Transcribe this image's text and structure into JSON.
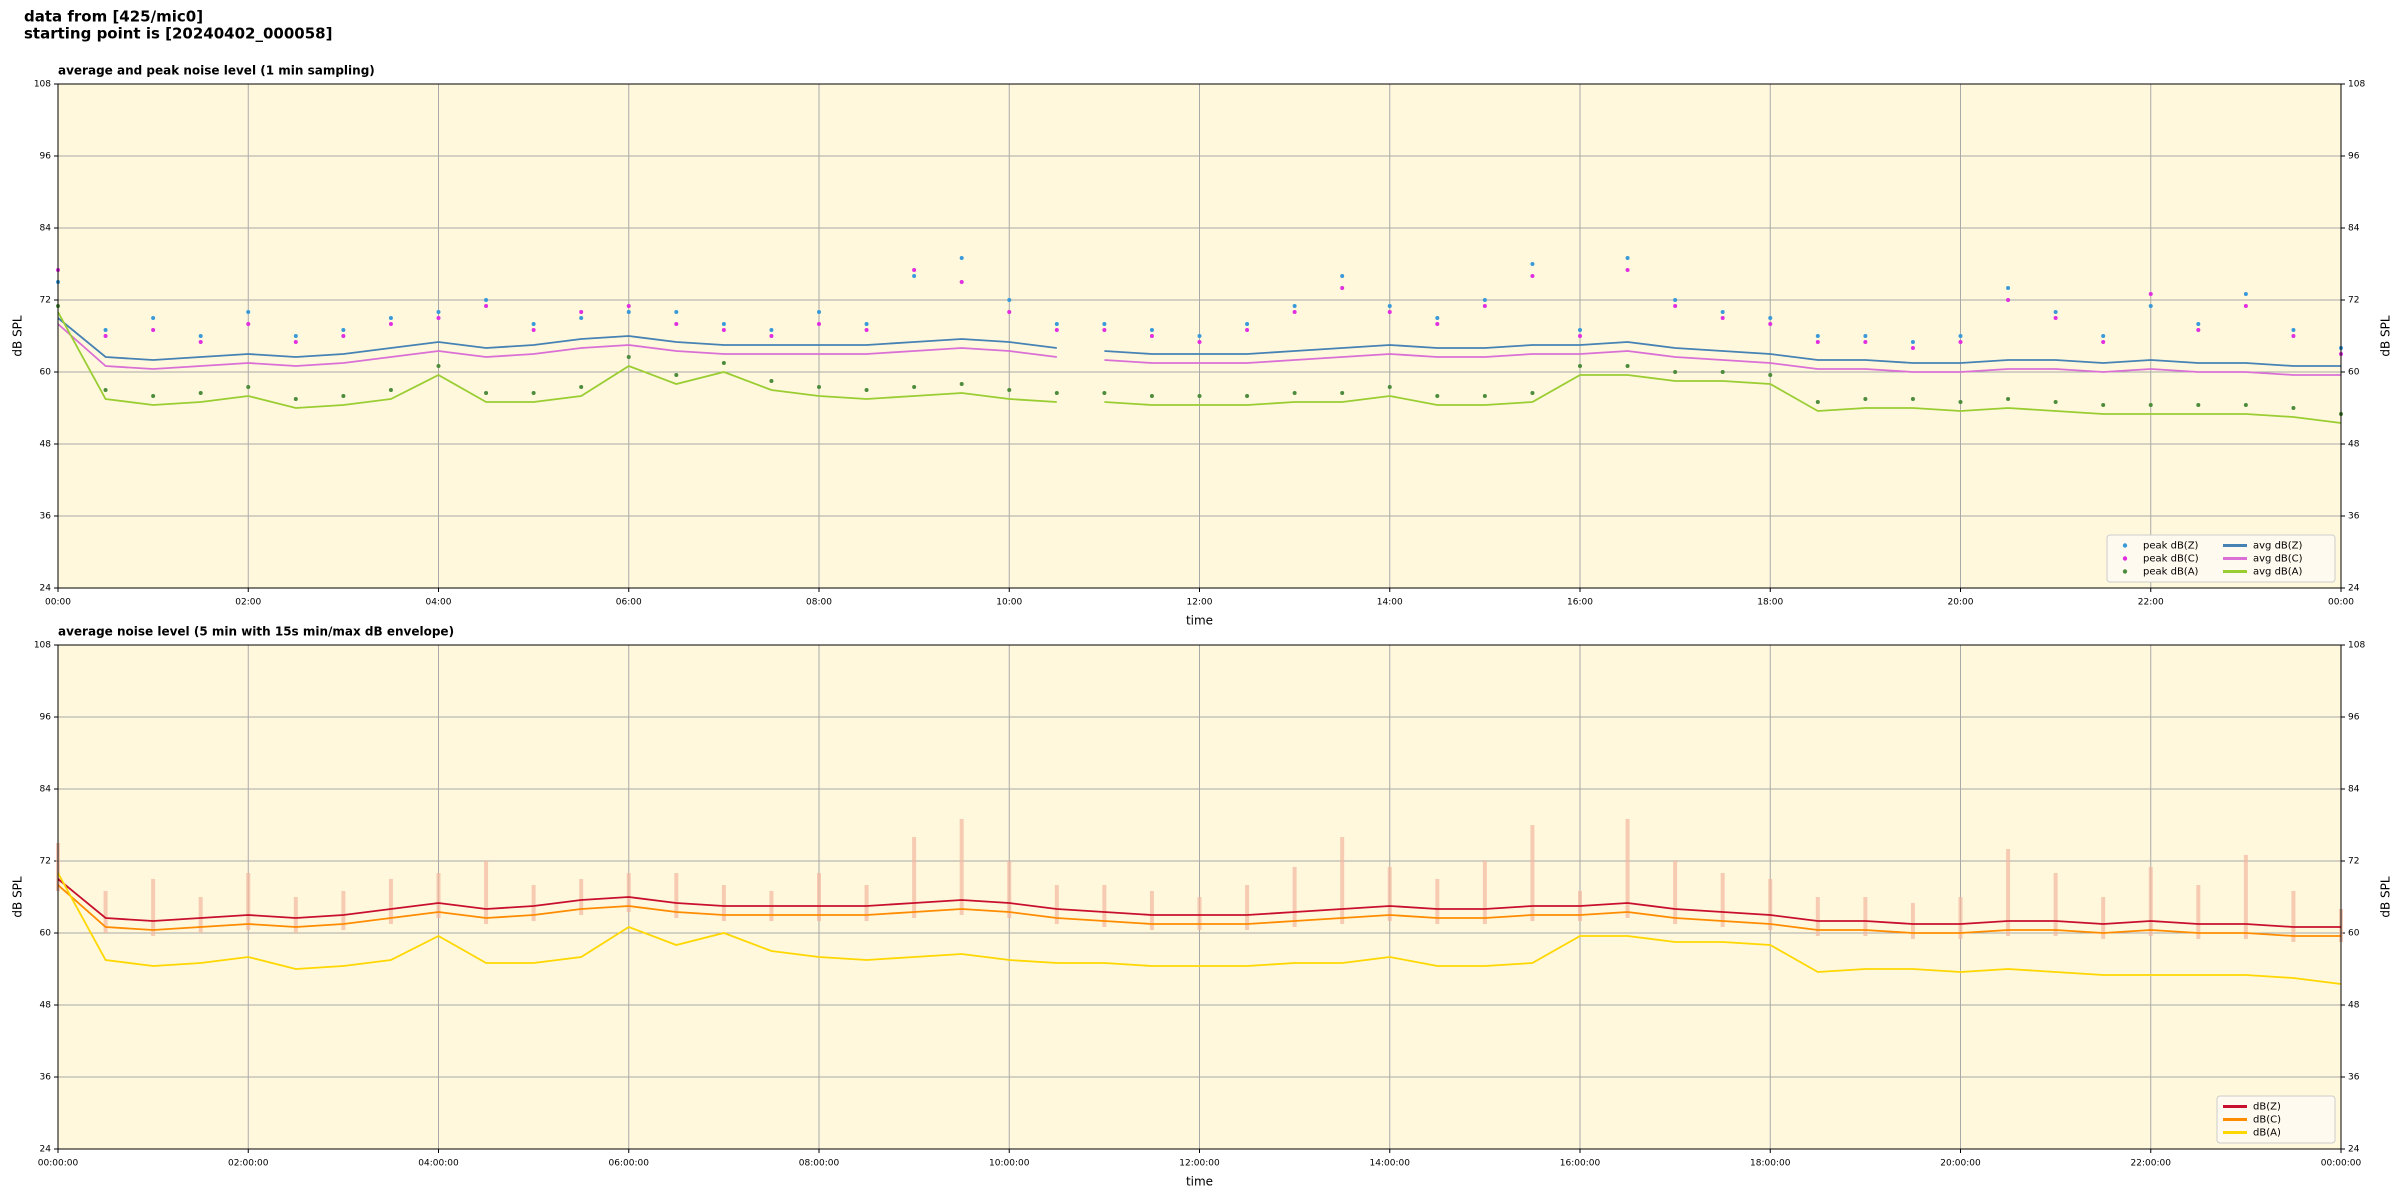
{
  "header": {
    "lines": [
      "data from [425/mic0]",
      "starting point is [20240402_000058]"
    ]
  },
  "chart_data": [
    {
      "type": "line",
      "title": "average and peak noise level (1 min sampling)",
      "xlabel": "time",
      "ylabel": "dB SPL",
      "y2label": "dB SPL",
      "xlim": [
        0,
        24
      ],
      "xticks": [
        {
          "value": 0,
          "label": "00:00"
        },
        {
          "value": 2,
          "label": "02:00"
        },
        {
          "value": 4,
          "label": "04:00"
        },
        {
          "value": 6,
          "label": "06:00"
        },
        {
          "value": 8,
          "label": "08:00"
        },
        {
          "value": 10,
          "label": "10:00"
        },
        {
          "value": 12,
          "label": "12:00"
        },
        {
          "value": 14,
          "label": "14:00"
        },
        {
          "value": 16,
          "label": "16:00"
        },
        {
          "value": 18,
          "label": "18:00"
        },
        {
          "value": 20,
          "label": "20:00"
        },
        {
          "value": 22,
          "label": "22:00"
        },
        {
          "value": 24,
          "label": "00:00"
        }
      ],
      "ylim": [
        24,
        108
      ],
      "yticks": [
        24,
        36,
        48,
        60,
        72,
        84,
        96,
        108
      ],
      "y2lim": [
        24,
        108
      ],
      "y2ticks": [
        24,
        36,
        48,
        60,
        72,
        84,
        96,
        108
      ],
      "grid": true,
      "background": "#fff8dc",
      "legend_loc": "lower right",
      "legend_columns": 2,
      "x": [
        0,
        0.5,
        1,
        1.5,
        2,
        2.5,
        3,
        3.5,
        4,
        4.5,
        5,
        5.5,
        6,
        6.5,
        7,
        7.5,
        8,
        8.5,
        9,
        9.5,
        10,
        10.5,
        10.75,
        11,
        11.5,
        12,
        12.5,
        13,
        13.5,
        14,
        14.5,
        15,
        15.5,
        16,
        16.5,
        17,
        17.5,
        18,
        18.5,
        19,
        19.5,
        20,
        20.5,
        21,
        21.5,
        22,
        22.5,
        23,
        23.5,
        24
      ],
      "series": [
        {
          "name": "peak dB(Z)",
          "mode": "markers",
          "color": "#3a9ad9",
          "values": [
            75,
            67,
            69,
            66,
            70,
            66,
            67,
            69,
            70,
            72,
            68,
            69,
            70,
            70,
            68,
            67,
            70,
            68,
            76,
            79,
            72,
            68,
            null,
            68,
            67,
            66,
            68,
            71,
            76,
            71,
            69,
            72,
            78,
            67,
            79,
            72,
            70,
            69,
            66,
            66,
            65,
            66,
            74,
            70,
            66,
            71,
            68,
            73,
            67,
            64
          ]
        },
        {
          "name": "peak dB(C)",
          "mode": "markers",
          "color": "#e02ee0",
          "values": [
            77,
            66,
            67,
            65,
            68,
            65,
            66,
            68,
            69,
            71,
            67,
            70,
            71,
            68,
            67,
            66,
            68,
            67,
            77,
            75,
            70,
            67,
            null,
            67,
            66,
            65,
            67,
            70,
            74,
            70,
            68,
            71,
            76,
            66,
            77,
            71,
            69,
            68,
            65,
            65,
            64,
            65,
            72,
            69,
            65,
            73,
            67,
            71,
            66,
            63
          ]
        },
        {
          "name": "peak dB(A)",
          "mode": "markers",
          "color": "#4c8c3c",
          "values": [
            71,
            57,
            56,
            56.5,
            57.5,
            55.5,
            56,
            57,
            61,
            56.5,
            56.5,
            57.5,
            62.5,
            59.5,
            61.5,
            58.5,
            57.5,
            57,
            57.5,
            58,
            57,
            56.5,
            null,
            56.5,
            56,
            56,
            56,
            56.5,
            56.5,
            57.5,
            56,
            56,
            56.5,
            61,
            61,
            60,
            60,
            59.5,
            55,
            55.5,
            55.5,
            55,
            55.5,
            55,
            54.5,
            54.5,
            54.5,
            54.5,
            54,
            53
          ]
        },
        {
          "name": "avg dB(Z)",
          "mode": "lines",
          "color": "#4682b4",
          "values": [
            69,
            62.5,
            62,
            62.5,
            63,
            62.5,
            63,
            64,
            65,
            64,
            64.5,
            65.5,
            66,
            65,
            64.5,
            64.5,
            64.5,
            64.5,
            65,
            65.5,
            65,
            64,
            null,
            63.5,
            63,
            63,
            63,
            63.5,
            64,
            64.5,
            64,
            64,
            64.5,
            64.5,
            65,
            64,
            63.5,
            63,
            62,
            62,
            61.5,
            61.5,
            62,
            62,
            61.5,
            62,
            61.5,
            61.5,
            61,
            61
          ]
        },
        {
          "name": "avg dB(C)",
          "mode": "lines",
          "color": "#da70d6",
          "values": [
            68,
            61,
            60.5,
            61,
            61.5,
            61,
            61.5,
            62.5,
            63.5,
            62.5,
            63,
            64,
            64.5,
            63.5,
            63,
            63,
            63,
            63,
            63.5,
            64,
            63.5,
            62.5,
            null,
            62,
            61.5,
            61.5,
            61.5,
            62,
            62.5,
            63,
            62.5,
            62.5,
            63,
            63,
            63.5,
            62.5,
            62,
            61.5,
            60.5,
            60.5,
            60,
            60,
            60.5,
            60.5,
            60,
            60.5,
            60,
            60,
            59.5,
            59.5
          ]
        },
        {
          "name": "avg dB(A)",
          "mode": "lines",
          "color": "#9acd32",
          "values": [
            70,
            55.5,
            54.5,
            55,
            56,
            54,
            54.5,
            55.5,
            59.5,
            55,
            55,
            56,
            61,
            58,
            60,
            57,
            56,
            55.5,
            56,
            56.5,
            55.5,
            55,
            null,
            55,
            54.5,
            54.5,
            54.5,
            55,
            55,
            56,
            54.5,
            54.5,
            55,
            59.5,
            59.5,
            58.5,
            58.5,
            58,
            53.5,
            54,
            54,
            53.5,
            54,
            53.5,
            53,
            53,
            53,
            53,
            52.5,
            51.5
          ]
        }
      ]
    },
    {
      "type": "line",
      "title": "average noise level (5 min with 15s min/max dB envelope)",
      "xlabel": "time",
      "ylabel": "dB SPL",
      "y2label": "dB SPL",
      "xlim": [
        0,
        24
      ],
      "xticks": [
        {
          "value": 0,
          "label": "00:00:00"
        },
        {
          "value": 2,
          "label": "02:00:00"
        },
        {
          "value": 4,
          "label": "04:00:00"
        },
        {
          "value": 6,
          "label": "06:00:00"
        },
        {
          "value": 8,
          "label": "08:00:00"
        },
        {
          "value": 10,
          "label": "10:00:00"
        },
        {
          "value": 12,
          "label": "12:00:00"
        },
        {
          "value": 14,
          "label": "14:00:00"
        },
        {
          "value": 16,
          "label": "16:00:00"
        },
        {
          "value": 18,
          "label": "18:00:00"
        },
        {
          "value": 20,
          "label": "20:00:00"
        },
        {
          "value": 22,
          "label": "22:00:00"
        },
        {
          "value": 24,
          "label": "00:00:00"
        }
      ],
      "ylim": [
        24,
        108
      ],
      "yticks": [
        24,
        36,
        48,
        60,
        72,
        84,
        96,
        108
      ],
      "y2lim": [
        24,
        108
      ],
      "y2ticks": [
        24,
        36,
        48,
        60,
        72,
        84,
        96,
        108
      ],
      "grid": true,
      "background": "#fff8dc",
      "legend_loc": "lower right",
      "legend_columns": 1,
      "x": [
        0,
        0.5,
        1,
        1.5,
        2,
        2.5,
        3,
        3.5,
        4,
        4.5,
        5,
        5.5,
        6,
        6.5,
        7,
        7.5,
        8,
        8.5,
        9,
        9.5,
        10,
        10.5,
        11,
        11.5,
        12,
        12.5,
        13,
        13.5,
        14,
        14.5,
        15,
        15.5,
        16,
        16.5,
        17,
        17.5,
        18,
        18.5,
        19,
        19.5,
        20,
        20.5,
        21,
        21.5,
        22,
        22.5,
        23,
        23.5,
        24
      ],
      "envelope": {
        "color": "#f4b8a0",
        "min": [
          67,
          60,
          59.5,
          60,
          60.5,
          60,
          60.5,
          61.5,
          62.5,
          61.5,
          62,
          63,
          63.5,
          62.5,
          62,
          62,
          62,
          62,
          62.5,
          63,
          62.5,
          61.5,
          61,
          60.5,
          60.5,
          60.5,
          61,
          61.5,
          62,
          61.5,
          61.5,
          62,
          62,
          62.5,
          61.5,
          61,
          60.5,
          59.5,
          59.5,
          59,
          59,
          59.5,
          59.5,
          59,
          59.5,
          59,
          59,
          58.5,
          58.5
        ],
        "max": [
          75,
          67,
          69,
          66,
          70,
          66,
          67,
          69,
          70,
          72,
          68,
          69,
          70,
          70,
          68,
          67,
          70,
          68,
          76,
          79,
          72,
          68,
          68,
          67,
          66,
          68,
          71,
          76,
          71,
          69,
          72,
          78,
          67,
          79,
          72,
          70,
          69,
          66,
          66,
          65,
          66,
          74,
          70,
          66,
          71,
          68,
          73,
          67,
          64
        ]
      },
      "series": [
        {
          "name": "dB(Z)",
          "mode": "lines",
          "color": "#c8102e",
          "values": [
            69,
            62.5,
            62,
            62.5,
            63,
            62.5,
            63,
            64,
            65,
            64,
            64.5,
            65.5,
            66,
            65,
            64.5,
            64.5,
            64.5,
            64.5,
            65,
            65.5,
            65,
            64,
            63.5,
            63,
            63,
            63,
            63.5,
            64,
            64.5,
            64,
            64,
            64.5,
            64.5,
            65,
            64,
            63.5,
            63,
            62,
            62,
            61.5,
            61.5,
            62,
            62,
            61.5,
            62,
            61.5,
            61.5,
            61,
            61
          ]
        },
        {
          "name": "dB(C)",
          "mode": "lines",
          "color": "#ff8c00",
          "values": [
            68,
            61,
            60.5,
            61,
            61.5,
            61,
            61.5,
            62.5,
            63.5,
            62.5,
            63,
            64,
            64.5,
            63.5,
            63,
            63,
            63,
            63,
            63.5,
            64,
            63.5,
            62.5,
            62,
            61.5,
            61.5,
            61.5,
            62,
            62.5,
            63,
            62.5,
            62.5,
            63,
            63,
            63.5,
            62.5,
            62,
            61.5,
            60.5,
            60.5,
            60,
            60,
            60.5,
            60.5,
            60,
            60.5,
            60,
            60,
            59.5,
            59.5
          ]
        },
        {
          "name": "dB(A)",
          "mode": "lines",
          "color": "#ffd700",
          "values": [
            70,
            55.5,
            54.5,
            55,
            56,
            54,
            54.5,
            55.5,
            59.5,
            55,
            55,
            56,
            61,
            58,
            60,
            57,
            56,
            55.5,
            56,
            56.5,
            55.5,
            55,
            55,
            54.5,
            54.5,
            54.5,
            55,
            55,
            56,
            54.5,
            54.5,
            55,
            59.5,
            59.5,
            58.5,
            58.5,
            58,
            53.5,
            54,
            54,
            53.5,
            54,
            53.5,
            53,
            53,
            53,
            53,
            52.5,
            51.5
          ]
        }
      ]
    }
  ]
}
